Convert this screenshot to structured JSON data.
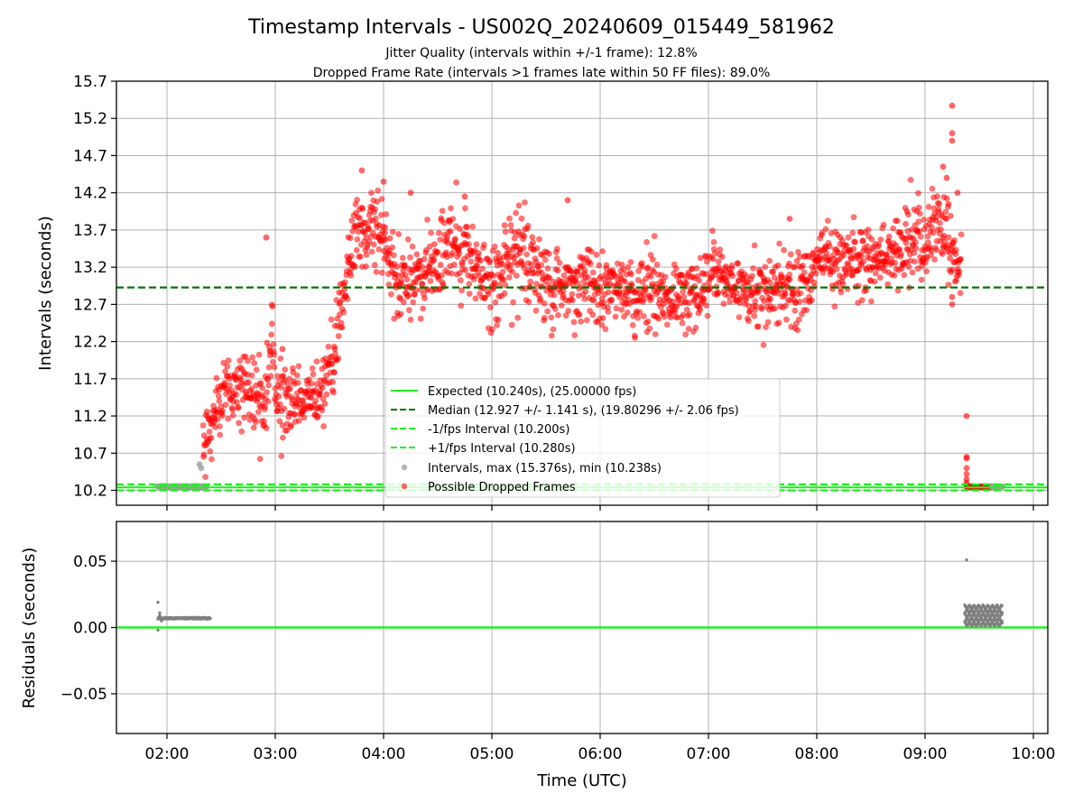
{
  "chart_data": {
    "type": "scatter",
    "title": "Timestamp Intervals - US002Q_20240609_015449_581962",
    "subtitle_lines": [
      "Jitter Quality (intervals within +/-1 frame): 12.8%",
      "Dropped Frame Rate (intervals >1 frames late within 50 FF files): 89.0%"
    ],
    "xlabel": "Time (UTC)",
    "x_ticks": [
      "02:00",
      "03:00",
      "04:00",
      "05:00",
      "06:00",
      "07:00",
      "08:00",
      "09:00",
      "10:00"
    ],
    "xlim": [
      "01:32",
      "10:08"
    ],
    "top_panel": {
      "ylabel": "Intervals (seconds)",
      "ylim": [
        10.0,
        15.7
      ],
      "y_ticks": [
        "10.2",
        "10.7",
        "11.2",
        "11.7",
        "12.2",
        "12.7",
        "13.2",
        "13.7",
        "14.2",
        "14.7",
        "15.2",
        "15.7"
      ],
      "grid": true,
      "lines": {
        "expected": 10.24,
        "median": 12.927,
        "minus_fps": 10.2,
        "plus_fps": 10.28
      },
      "colors": {
        "expected": "#22ee22",
        "median": "#007700",
        "fps_interval": "#22ee22",
        "intervals": "#a0a0a0",
        "dropped": "#ff0000"
      },
      "legend": {
        "placement": "lower-center",
        "entries": [
          "Expected (10.240s), (25.00000 fps)",
          "Median (12.927 +/- 1.141 s), (19.80296 +/- 2.06 fps)",
          "-1/fps Interval (10.200s)",
          "+1/fps Interval (10.280s)",
          "Intervals, max (15.376s), min (10.238s)",
          "Possible Dropped Frames"
        ]
      },
      "trend": [
        [
          "02:20",
          10.75,
          0.25
        ],
        [
          "02:25",
          11.15,
          0.3
        ],
        [
          "02:33",
          11.6,
          0.35
        ],
        [
          "02:45",
          11.55,
          0.35
        ],
        [
          "02:55",
          11.35,
          0.3
        ],
        [
          "02:58",
          12.4,
          0.5
        ],
        [
          "03:00",
          11.55,
          0.3
        ],
        [
          "03:12",
          11.4,
          0.3
        ],
        [
          "03:25",
          11.55,
          0.3
        ],
        [
          "03:32",
          11.9,
          0.3
        ],
        [
          "03:38",
          12.8,
          0.35
        ],
        [
          "03:45",
          13.7,
          0.35
        ],
        [
          "04:00",
          13.7,
          0.35
        ],
        [
          "04:05",
          13.05,
          0.35
        ],
        [
          "04:20",
          13.0,
          0.35
        ],
        [
          "04:35",
          13.5,
          0.4
        ],
        [
          "04:50",
          13.3,
          0.4
        ],
        [
          "05:00",
          13.0,
          0.35
        ],
        [
          "05:15",
          13.4,
          0.4
        ],
        [
          "05:30",
          13.0,
          0.35
        ],
        [
          "05:45",
          12.9,
          0.35
        ],
        [
          "06:00",
          12.9,
          0.3
        ],
        [
          "06:20",
          12.85,
          0.3
        ],
        [
          "06:40",
          12.8,
          0.3
        ],
        [
          "06:55",
          12.85,
          0.3
        ],
        [
          "07:05",
          13.1,
          0.35
        ],
        [
          "07:20",
          12.9,
          0.3
        ],
        [
          "07:40",
          12.95,
          0.35
        ],
        [
          "07:50",
          12.9,
          0.35
        ],
        [
          "08:00",
          13.3,
          0.3
        ],
        [
          "08:20",
          13.2,
          0.3
        ],
        [
          "08:40",
          13.35,
          0.3
        ],
        [
          "09:00",
          13.6,
          0.35
        ],
        [
          "09:10",
          13.8,
          0.4
        ],
        [
          "09:20",
          13.1,
          0.3
        ]
      ],
      "outliers": [
        [
          "03:33",
          12.1
        ],
        [
          "03:04",
          12.1
        ],
        [
          "02:55",
          13.6
        ],
        [
          "03:48",
          14.5
        ],
        [
          "04:00",
          14.35
        ],
        [
          "04:15",
          14.2
        ],
        [
          "04:45",
          14.15
        ],
        [
          "05:42",
          14.1
        ],
        [
          "07:45",
          13.85
        ],
        [
          "08:50",
          13.95
        ],
        [
          "09:10",
          14.55
        ],
        [
          "09:12",
          14.4
        ],
        [
          "09:15",
          15.37
        ],
        [
          "09:15",
          15.0
        ],
        [
          "09:15",
          14.9
        ],
        [
          "09:15",
          12.8
        ],
        [
          "09:15",
          12.7
        ],
        [
          "09:18",
          14.2
        ],
        [
          "09:13",
          14.05
        ]
      ],
      "late_drop_cluster": {
        "x": "09:23",
        "y": [
          11.2,
          10.65,
          10.63,
          10.5,
          10.42,
          10.35,
          10.3,
          10.27
        ]
      },
      "tail_points": {
        "x_range": [
          "09:23",
          "09:37"
        ],
        "y": 10.25
      },
      "gray_points": [
        [
          "02:18",
          10.55
        ],
        [
          "02:19",
          10.5
        ]
      ],
      "gray_band": {
        "x_range": [
          "01:55",
          "02:22"
        ],
        "y": 10.25
      }
    },
    "bottom_panel": {
      "ylabel": "Residuals (seconds)",
      "ylim": [
        -0.08,
        0.08
      ],
      "y_ticks": [
        "0.05",
        "0.00",
        "−0.05"
      ],
      "y_tick_values": [
        0.05,
        0.0,
        -0.05
      ],
      "grid": true,
      "zero_line_color": "#22ee22",
      "left_cluster": {
        "x_range": [
          "01:55",
          "02:24"
        ],
        "baseline": 0.007,
        "extras": [
          [
            "01:55",
            0.019
          ],
          [
            "01:55",
            -0.002
          ],
          [
            "01:56",
            0.011
          ],
          [
            "01:56",
            0.009
          ],
          [
            "01:57",
            0.005
          ]
        ]
      },
      "right_cluster": {
        "x_range": [
          "09:22",
          "09:43"
        ],
        "range": [
          0.001,
          0.017
        ],
        "outlier": [
          "09:23",
          0.051
        ]
      },
      "point_color": "#808080"
    }
  }
}
